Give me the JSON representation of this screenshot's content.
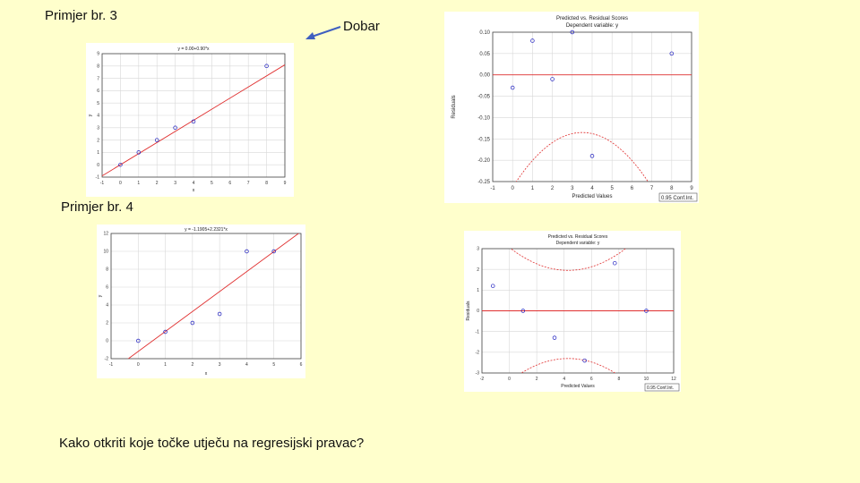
{
  "headings": {
    "example3": "Primjer br. 3",
    "example4": "Primjer br. 4",
    "annotation": "Dobar",
    "question": "Kako otkriti koje točke utječu na regresijski pravac?"
  },
  "colors": {
    "background": "#ffffcc",
    "fit_line": "#e03030",
    "points": "#2020c0",
    "arrow": "#4060c0"
  },
  "chart_data": [
    {
      "id": "scatter3",
      "type": "scatter",
      "title": "y = 0.00+0.90*x",
      "xlabel": "x",
      "ylabel": "y",
      "xlim": [
        -1,
        9
      ],
      "ylim": [
        -1,
        9
      ],
      "xticks": [
        -1,
        0,
        1,
        2,
        3,
        4,
        5,
        6,
        7,
        8,
        9
      ],
      "yticks": [
        -1,
        0,
        1,
        2,
        3,
        4,
        5,
        6,
        7,
        8,
        9
      ],
      "points": [
        {
          "x": 0,
          "y": 0
        },
        {
          "x": 1,
          "y": 1
        },
        {
          "x": 2,
          "y": 2
        },
        {
          "x": 3,
          "y": 3
        },
        {
          "x": 4,
          "y": 3.5
        },
        {
          "x": 8,
          "y": 8
        }
      ],
      "fit": {
        "intercept": 0.0,
        "slope": 0.9
      }
    },
    {
      "id": "resid3",
      "type": "scatter",
      "title": "Predicted vs. Residual Scores",
      "subtitle": "Dependent variable: y",
      "xlabel": "Predicted Values",
      "ylabel": "Residuals",
      "xlim": [
        -1,
        9
      ],
      "ylim": [
        -0.25,
        0.1
      ],
      "xticks": [
        -1,
        0,
        1,
        2,
        3,
        4,
        5,
        6,
        7,
        8,
        9
      ],
      "yticks": [
        0.1,
        0.05,
        0.0,
        -0.05,
        -0.1,
        -0.15,
        -0.2,
        -0.25
      ],
      "ytick_labels": [
        "0.10",
        "0.05",
        "0.00",
        "-0.05",
        "-0.10",
        "-0.15",
        "-0.20",
        "-0.25"
      ],
      "points": [
        {
          "x": 0,
          "y": -0.03
        },
        {
          "x": 1,
          "y": 0.08
        },
        {
          "x": 2,
          "y": -0.01
        },
        {
          "x": 3,
          "y": 0.1
        },
        {
          "x": 4,
          "y": -0.19
        },
        {
          "x": 8,
          "y": 0.05
        }
      ],
      "zero_line": 0,
      "band": {
        "center": 3.5,
        "upper_center": 0.15,
        "upper_curv": 0.0105,
        "lower_center": -0.135,
        "lower_curv": 0.0105
      },
      "legend": "0.95 Conf.Int."
    },
    {
      "id": "scatter4",
      "type": "scatter",
      "title": "y = -1.1905+2.2321*x",
      "xlabel": "x",
      "ylabel": "y",
      "xlim": [
        -1,
        6
      ],
      "ylim": [
        -2,
        12
      ],
      "xticks": [
        -1,
        0,
        1,
        2,
        3,
        4,
        5,
        6
      ],
      "yticks": [
        -2,
        0,
        2,
        4,
        6,
        8,
        10,
        12
      ],
      "points": [
        {
          "x": 0,
          "y": 0
        },
        {
          "x": 1,
          "y": 1
        },
        {
          "x": 2,
          "y": 2
        },
        {
          "x": 3,
          "y": 3
        },
        {
          "x": 4,
          "y": 10
        },
        {
          "x": 5,
          "y": 10
        }
      ],
      "fit": {
        "intercept": -1.1905,
        "slope": 2.2321
      }
    },
    {
      "id": "resid4",
      "type": "scatter",
      "title": "Predicted vs. Residual Scores",
      "subtitle": "Dependent variable: y",
      "xlabel": "Predicted Values",
      "ylabel": "Residuals",
      "xlim": [
        -2,
        12
      ],
      "ylim": [
        -3,
        3
      ],
      "xticks": [
        -2,
        0,
        2,
        4,
        6,
        8,
        10,
        12
      ],
      "yticks": [
        3,
        2,
        1,
        0,
        -1,
        -2,
        -3
      ],
      "points": [
        {
          "x": -1.2,
          "y": 1.2
        },
        {
          "x": 1.0,
          "y": 0.0
        },
        {
          "x": 3.3,
          "y": -1.3
        },
        {
          "x": 5.5,
          "y": -2.4
        },
        {
          "x": 7.7,
          "y": 2.3
        },
        {
          "x": 10.0,
          "y": 0.0
        }
      ],
      "zero_line": 0,
      "band": {
        "center": 4.3,
        "upper_center": 1.95,
        "upper_curv": 0.06,
        "lower_center": -2.3,
        "lower_curv": 0.06
      },
      "legend": "0.95 Conf.Int."
    }
  ]
}
